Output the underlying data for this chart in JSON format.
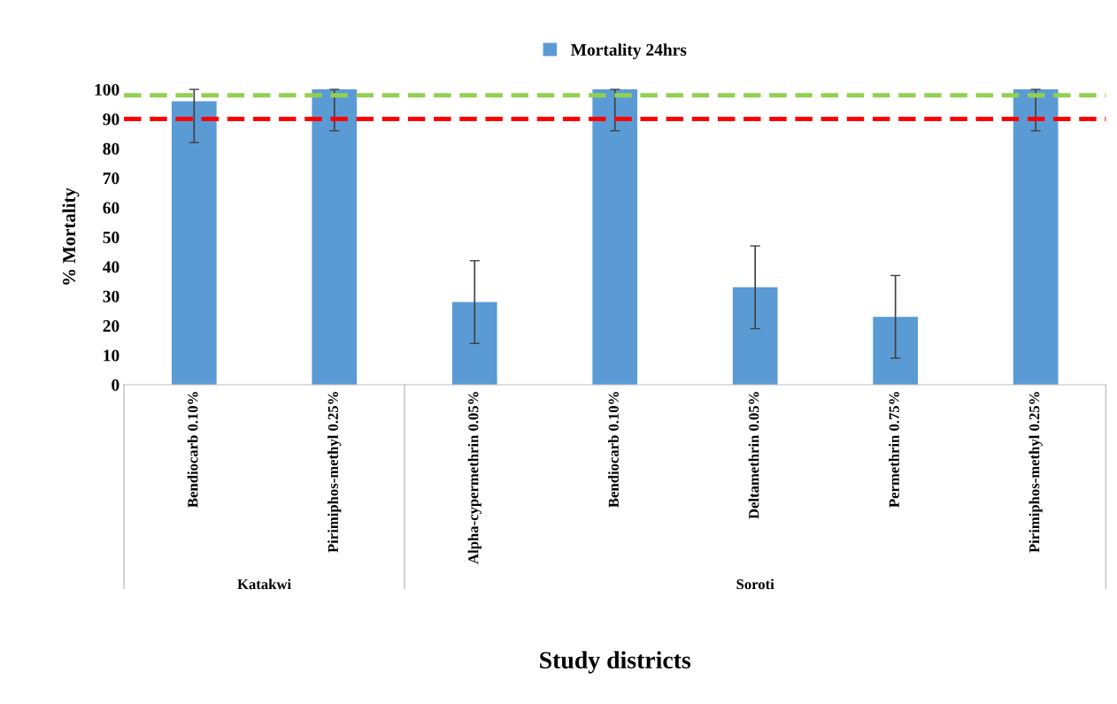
{
  "chart_data": {
    "type": "bar",
    "categories": [
      "Bendiocarb 0.10%",
      "Pirimiphos-methyl 0.25%",
      "Alpha-cypermethrin 0.05%",
      "Bendiocarb 0.10%",
      "Deltamethrin 0.05%",
      "Permethrin 0.75%",
      "Pirimiphos-methyl 0.25%"
    ],
    "series": [
      {
        "name": "Mortality 24hrs",
        "color": "#5b9bd5",
        "values": [
          96,
          100,
          28,
          100,
          33,
          23,
          100
        ],
        "errors": [
          [
            82,
            100
          ],
          [
            86,
            100
          ],
          [
            14,
            42
          ],
          [
            86,
            100
          ],
          [
            19,
            47
          ],
          [
            9,
            37
          ],
          [
            86,
            100
          ]
        ]
      }
    ],
    "ylabel": "% Mortality",
    "xlabel": "Study districts",
    "annotations": [
      "Katakwi",
      "Soroti"
    ],
    "ylim": [
      0,
      100
    ],
    "yticks": [
      0,
      10,
      20,
      30,
      40,
      50,
      60,
      70,
      80,
      90,
      100
    ],
    "ref_lines": [
      {
        "axis": "y",
        "value": 98,
        "color": "#92d050",
        "line_style": "dashed"
      },
      {
        "axis": "y",
        "value": 90,
        "color": "#ff0000",
        "line_style": "dashed"
      }
    ],
    "grid": false,
    "legend": "top"
  }
}
